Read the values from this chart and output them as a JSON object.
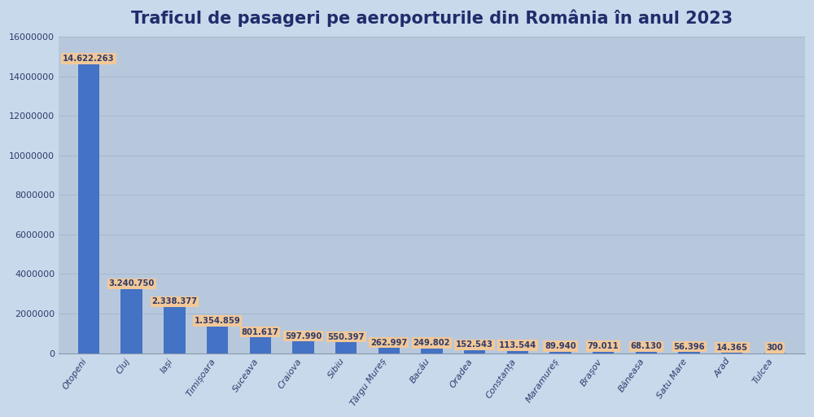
{
  "title": "Traficul de pasageri pe aeroporturile din România în anul 2023",
  "categories": [
    "Otopeni",
    "Cluj",
    "Iași",
    "Timișoara",
    "Suceava",
    "Craiova",
    "Sibiu",
    "Târgu Mureș",
    "Bacău",
    "Oradea",
    "Constanța",
    "Maramureș",
    "Brașov",
    "Băneasa",
    "Satu Mare",
    "Arad",
    "Tulcea"
  ],
  "values": [
    14622263,
    3240750,
    2338377,
    1354859,
    801617,
    597990,
    550397,
    262997,
    249802,
    152543,
    113544,
    89940,
    79011,
    68130,
    56396,
    14365,
    300
  ],
  "labels": [
    "14.622.263",
    "3.240.750",
    "2.338.377",
    "1.354.859",
    "801.617",
    "597.990",
    "550.397",
    "262.997",
    "249.802",
    "152.543",
    "113.544",
    "89.940",
    "79.011",
    "68.130",
    "56.396",
    "14.365",
    "300"
  ],
  "bar_color": "#4472C4",
  "label_bg_color": "#F2C898",
  "label_text_color": "#2E3B6B",
  "title_color": "#1F2D6B",
  "fig_background_color": "#C9D9EC",
  "plot_bg_color": "#B8C8DC",
  "ylim": [
    0,
    16000000
  ],
  "yticks": [
    0,
    2000000,
    4000000,
    6000000,
    8000000,
    10000000,
    12000000,
    14000000,
    16000000
  ],
  "title_fontsize": 15,
  "label_fontsize": 7.2,
  "tick_fontsize": 8,
  "xtick_fontsize": 8,
  "grid_color": "#A8B8CC",
  "bar_width": 0.5
}
